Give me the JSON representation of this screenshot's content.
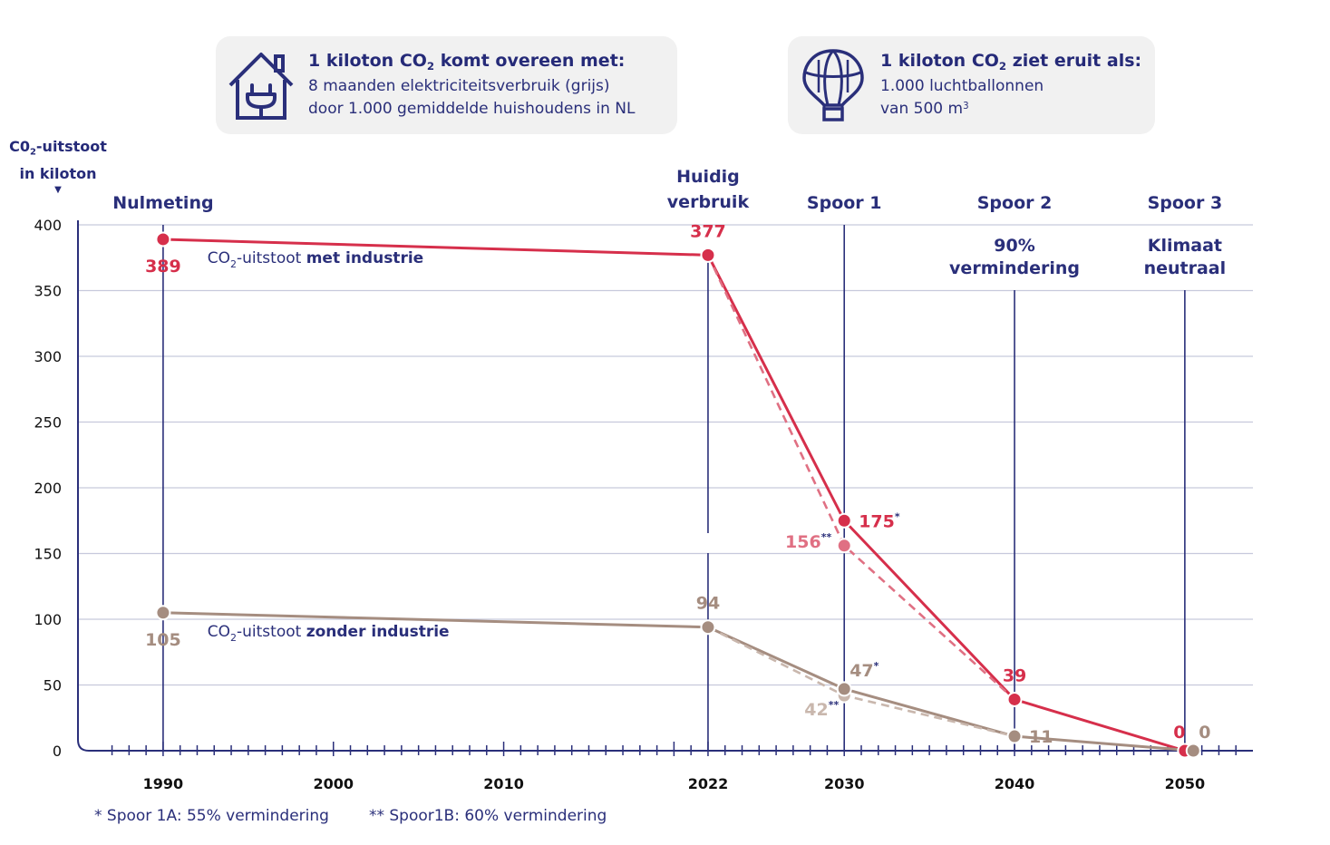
{
  "cards": {
    "house": {
      "title_a": "1 kiloton CO",
      "title_sub": "2",
      "title_b": " komt overeen met:",
      "line1": "8 maanden elektriciteitsverbruik (grijs)",
      "line2": "door 1.000 gemiddelde huishoudens in NL",
      "icon": "house-plug-icon"
    },
    "balloon": {
      "title_a": "1 kiloton CO",
      "title_sub": "2",
      "title_b": " ziet eruit als:",
      "line1": "1.000 luchtballonnen",
      "line2_a": "van 500 m",
      "line2_sup": "3",
      "icon": "hot-air-balloon-icon"
    }
  },
  "y_axis_label": {
    "line1_a": "C0",
    "line1_sub": "2",
    "line1_b": "-uitstoot",
    "line2": "in kiloton",
    "arrow": "▼"
  },
  "footnotes": {
    "a": "* Spoor 1A: 55% vermindering",
    "b": "** Spoor1B: 60% vermindering"
  },
  "colors": {
    "navy": "#2a2f7a",
    "red": "#d62f4b",
    "red_light": "#e07083",
    "brown": "#a58d80",
    "brown_light": "#c9b7ad",
    "grid": "#c7c9dc"
  },
  "chart_data": {
    "type": "line",
    "title": "",
    "ylabel": "C02-uitstoot in kiloton",
    "xlabel": "",
    "ylim": [
      0,
      400
    ],
    "yticks": [
      0,
      50,
      100,
      150,
      200,
      250,
      300,
      350,
      400
    ],
    "xlim": [
      1985,
      2054
    ],
    "xticks": [
      1990,
      2000,
      2010,
      2022,
      2030,
      2040,
      2050
    ],
    "milestones": [
      {
        "x": 1990,
        "label": [
          "Nulmeting"
        ]
      },
      {
        "x": 2022,
        "label": [
          "Huidig",
          "verbruik"
        ]
      },
      {
        "x": 2030,
        "label": [
          "Spoor 1"
        ]
      },
      {
        "x": 2040,
        "label": [
          "Spoor 2"
        ],
        "sublabel": [
          "90%",
          "vermindering"
        ]
      },
      {
        "x": 2050,
        "label": [
          "Spoor 3"
        ],
        "sublabel": [
          "Klimaat",
          "neutraal"
        ]
      }
    ],
    "series": [
      {
        "name": "CO2-uitstoot met industrie",
        "legend_a": "CO",
        "legend_sub": "2",
        "legend_b": "-uitstoot ",
        "legend_bold": "met industrie",
        "legend_x": 1992.6,
        "legend_y": 371,
        "color": "#d62f4b",
        "dashed": false,
        "points": [
          {
            "x": 1990,
            "y": 389,
            "label": "389",
            "pos": "below"
          },
          {
            "x": 2022,
            "y": 377,
            "label": "377",
            "pos": "above"
          },
          {
            "x": 2030,
            "y": 175,
            "label": "175",
            "mark": "*",
            "pos": "right"
          },
          {
            "x": 2040,
            "y": 39,
            "label": "39",
            "pos": "above"
          },
          {
            "x": 2050,
            "y": 0,
            "label": "0",
            "pos": "above-left"
          }
        ]
      },
      {
        "name": "Spoor 1B met industrie",
        "color": "#e07083",
        "dashed": true,
        "points": [
          {
            "x": 2022,
            "y": 377
          },
          {
            "x": 2030,
            "y": 156,
            "label": "156",
            "mark": "**",
            "pos": "left"
          },
          {
            "x": 2040,
            "y": 39
          }
        ]
      },
      {
        "name": "CO2-uitstoot zonder industrie",
        "legend_a": "CO",
        "legend_sub": "2",
        "legend_b": "-uitstoot ",
        "legend_bold": "zonder industrie",
        "legend_x": 1992.6,
        "legend_y": 87,
        "color": "#a58d80",
        "dashed": false,
        "points": [
          {
            "x": 1990,
            "y": 105,
            "label": "105",
            "pos": "below"
          },
          {
            "x": 2022,
            "y": 94,
            "label": "94",
            "pos": "above"
          },
          {
            "x": 2030,
            "y": 47,
            "label": "47",
            "mark": "*",
            "pos": "above-right"
          },
          {
            "x": 2040,
            "y": 11,
            "label": "11",
            "pos": "right"
          },
          {
            "x": 2050.5,
            "y": 0,
            "label": "0",
            "pos": "above-right"
          }
        ]
      },
      {
        "name": "Spoor 1B zonder industrie",
        "color": "#c9b7ad",
        "dashed": true,
        "points": [
          {
            "x": 2022,
            "y": 94
          },
          {
            "x": 2030,
            "y": 42,
            "label": "42",
            "mark": "**",
            "pos": "below-left"
          },
          {
            "x": 2040,
            "y": 11
          }
        ]
      }
    ]
  }
}
